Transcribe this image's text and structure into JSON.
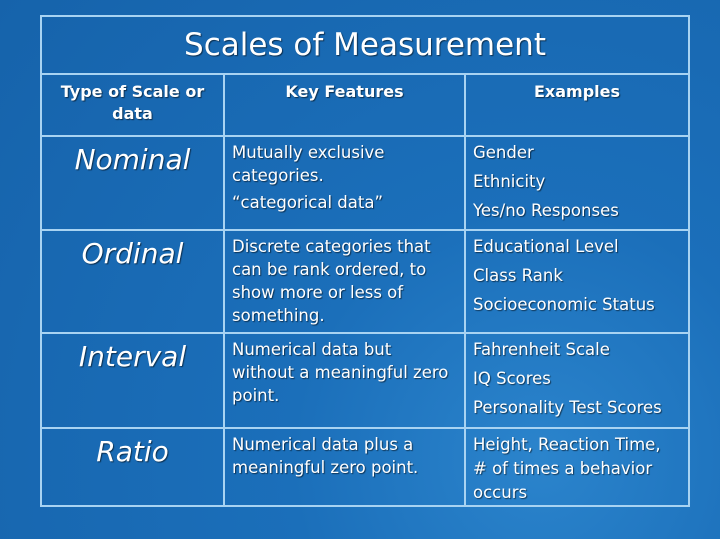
{
  "title": "Scales of Measurement",
  "headers": [
    "Type of Scale or data",
    "Key Features",
    "Examples"
  ],
  "rows": [
    {
      "scale": "Nominal",
      "features": [
        "Mutually exclusive categories.",
        "“categorical data”"
      ],
      "examples": [
        "Gender",
        "Ethnicity",
        "Yes/no Responses"
      ]
    },
    {
      "scale": "Ordinal",
      "features": [
        "Discrete categories that can be rank ordered, to show more or less of something."
      ],
      "examples": [
        "Educational Level",
        "Class Rank",
        "Socioeconomic Status"
      ]
    },
    {
      "scale": "Interval",
      "features": [
        "Numerical data but without a meaningful zero point."
      ],
      "examples": [
        "Fahrenheit Scale",
        "IQ Scores",
        "Personality Test Scores"
      ]
    },
    {
      "scale": "Ratio",
      "features": [
        "Numerical data plus a meaningful zero point."
      ],
      "examples": [
        "Height, Reaction Time,",
        "# of times a behavior occurs"
      ]
    }
  ],
  "colors": {
    "background": "#1b6fba",
    "border": "#a8d3f2",
    "text": "#ffffff"
  }
}
